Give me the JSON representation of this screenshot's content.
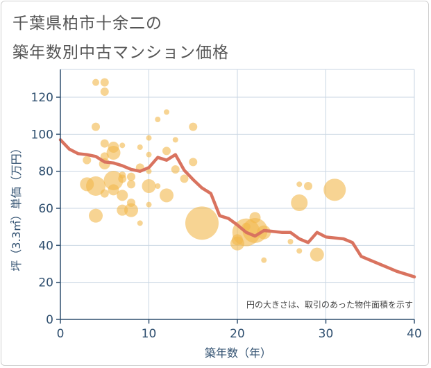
{
  "header": {
    "title_line1": "千葉県柏市十余二の",
    "title_line2": "築年数別中古マンション価格"
  },
  "chart_data": {
    "type": "scatter",
    "title": "千葉県柏市十余二の築年数別中古マンション価格",
    "xlabel": "築年数（年）",
    "ylabel": "坪（3.3㎡）単価（万円）",
    "xlim": [
      0,
      40
    ],
    "ylim": [
      0,
      135
    ],
    "xticks": [
      0,
      10,
      20,
      30,
      40
    ],
    "yticks": [
      0,
      20,
      40,
      60,
      80,
      100,
      120
    ],
    "grid": true,
    "note": "円の大きさは、取引のあった物件面積を示す",
    "colors": {
      "bubble": "#f2b84b",
      "line": "#d9735f",
      "axis": "#2f4f6f",
      "grid": "#c9d6e3"
    },
    "bubbles": [
      {
        "x": 4,
        "y": 128,
        "s": 5
      },
      {
        "x": 5,
        "y": 128,
        "s": 6
      },
      {
        "x": 5,
        "y": 123,
        "s": 6
      },
      {
        "x": 4,
        "y": 104,
        "s": 6
      },
      {
        "x": 12,
        "y": 112,
        "s": 4
      },
      {
        "x": 11,
        "y": 108,
        "s": 4
      },
      {
        "x": 15,
        "y": 104,
        "s": 6
      },
      {
        "x": 10,
        "y": 98,
        "s": 4
      },
      {
        "x": 13,
        "y": 97,
        "s": 4
      },
      {
        "x": 5,
        "y": 95,
        "s": 6
      },
      {
        "x": 6,
        "y": 93,
        "s": 8
      },
      {
        "x": 7,
        "y": 94,
        "s": 4
      },
      {
        "x": 9,
        "y": 93,
        "s": 4
      },
      {
        "x": 6,
        "y": 90,
        "s": 10
      },
      {
        "x": 5,
        "y": 88,
        "s": 6
      },
      {
        "x": 12,
        "y": 91,
        "s": 6
      },
      {
        "x": 10,
        "y": 89,
        "s": 4
      },
      {
        "x": 3,
        "y": 86,
        "s": 6
      },
      {
        "x": 5,
        "y": 84,
        "s": 8
      },
      {
        "x": 15,
        "y": 85,
        "s": 6
      },
      {
        "x": 9,
        "y": 82,
        "s": 6
      },
      {
        "x": 13,
        "y": 81,
        "s": 6
      },
      {
        "x": 10,
        "y": 80,
        "s": 4
      },
      {
        "x": 7,
        "y": 78,
        "s": 5
      },
      {
        "x": 8,
        "y": 77,
        "s": 6
      },
      {
        "x": 7,
        "y": 76,
        "s": 6
      },
      {
        "x": 14,
        "y": 76,
        "s": 6
      },
      {
        "x": 6,
        "y": 75,
        "s": 14
      },
      {
        "x": 3,
        "y": 73,
        "s": 10
      },
      {
        "x": 4,
        "y": 72,
        "s": 14
      },
      {
        "x": 8,
        "y": 73,
        "s": 6
      },
      {
        "x": 10,
        "y": 72,
        "s": 10
      },
      {
        "x": 11,
        "y": 72,
        "s": 4
      },
      {
        "x": 6,
        "y": 70,
        "s": 8
      },
      {
        "x": 5,
        "y": 68,
        "s": 6
      },
      {
        "x": 7,
        "y": 67,
        "s": 8
      },
      {
        "x": 12,
        "y": 67,
        "s": 10
      },
      {
        "x": 8,
        "y": 63,
        "s": 6
      },
      {
        "x": 10,
        "y": 62,
        "s": 4
      },
      {
        "x": 7,
        "y": 59,
        "s": 8
      },
      {
        "x": 8,
        "y": 59,
        "s": 10
      },
      {
        "x": 4,
        "y": 56,
        "s": 10
      },
      {
        "x": 9,
        "y": 52,
        "s": 4
      },
      {
        "x": 16,
        "y": 52,
        "s": 24
      },
      {
        "x": 22,
        "y": 55,
        "s": 8
      },
      {
        "x": 21,
        "y": 50,
        "s": 6
      },
      {
        "x": 21,
        "y": 47,
        "s": 20
      },
      {
        "x": 22,
        "y": 48,
        "s": 18
      },
      {
        "x": 23,
        "y": 47,
        "s": 10
      },
      {
        "x": 20,
        "y": 43,
        "s": 8
      },
      {
        "x": 20,
        "y": 41,
        "s": 10
      },
      {
        "x": 23,
        "y": 32,
        "s": 4
      },
      {
        "x": 26,
        "y": 42,
        "s": 4
      },
      {
        "x": 27,
        "y": 37,
        "s": 4
      },
      {
        "x": 27,
        "y": 73,
        "s": 4
      },
      {
        "x": 28,
        "y": 72,
        "s": 6
      },
      {
        "x": 27,
        "y": 63,
        "s": 12
      },
      {
        "x": 29,
        "y": 35,
        "s": 10
      },
      {
        "x": 31,
        "y": 70,
        "s": 16
      }
    ],
    "trend": {
      "x": [
        0,
        1,
        2,
        3,
        4,
        5,
        6,
        7,
        8,
        9,
        10,
        11,
        12,
        13,
        14,
        15,
        16,
        17,
        18,
        19,
        20,
        21,
        22,
        23,
        24,
        25,
        26,
        27,
        28,
        29,
        30,
        31,
        32,
        33,
        34,
        35,
        36,
        37,
        38,
        39,
        40
      ],
      "y": [
        97,
        92,
        89.5,
        89,
        88,
        85,
        84.5,
        83,
        81,
        80,
        82,
        87.5,
        86,
        89,
        80.5,
        75.5,
        71,
        68,
        56,
        54.5,
        51,
        47,
        45,
        48,
        47.5,
        47,
        47,
        43.5,
        41.5,
        47,
        44.5,
        44,
        43.5,
        41.5,
        34,
        32,
        30,
        28,
        26,
        24.5,
        23
      ]
    }
  }
}
